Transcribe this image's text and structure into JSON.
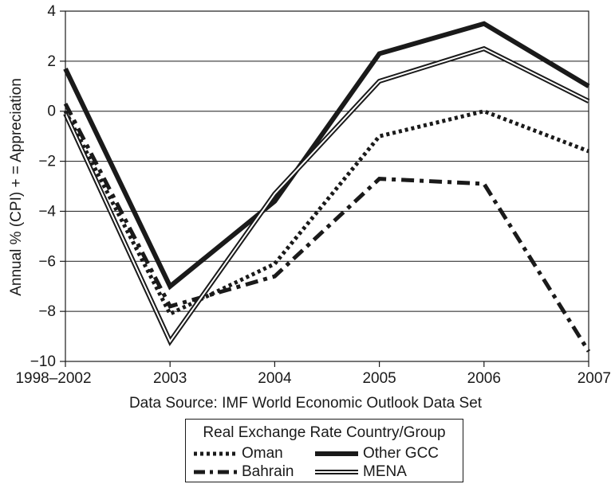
{
  "chart_data": {
    "type": "line",
    "title": "",
    "xlabel": "",
    "ylabel": "Annual % (CPI) + = Appreciation",
    "categories": [
      "1998–2002",
      "2003",
      "2004",
      "2005",
      "2006",
      "2007"
    ],
    "yticks": [
      "4",
      "2",
      "0",
      "−2",
      "−4",
      "−6",
      "−8",
      "−10"
    ],
    "ylim": [
      -10,
      4
    ],
    "grid": "horizontal",
    "series": [
      {
        "name": "Oman",
        "style": "dotted",
        "values": [
          0.0,
          -8.1,
          -6.1,
          -1.0,
          0.0,
          -1.6
        ]
      },
      {
        "name": "Bahrain",
        "style": "dash-dot",
        "values": [
          0.3,
          -7.8,
          -6.6,
          -2.7,
          -2.9,
          -9.6
        ]
      },
      {
        "name": "Other GCC",
        "style": "thick-solid",
        "values": [
          1.7,
          -7.0,
          -3.6,
          2.3,
          3.5,
          1.0
        ]
      },
      {
        "name": "MENA",
        "style": "double",
        "values": [
          -0.1,
          -9.2,
          -3.3,
          1.2,
          2.5,
          0.4
        ]
      }
    ],
    "source": "Data Source: IMF World Economic Outlook Data Set",
    "legend": {
      "title": "Real Exchange Rate Country/Group",
      "position": "bottom-center"
    }
  },
  "colors": {
    "line": "#1a1a1a",
    "grid": "#1a1a1a",
    "background": "#ffffff"
  }
}
